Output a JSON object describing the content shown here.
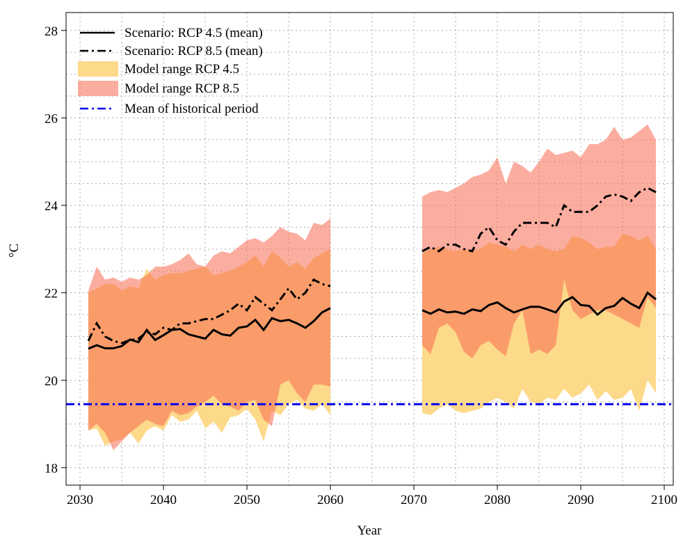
{
  "chart_data": {
    "type": "line",
    "xlabel": "Year",
    "ylabel": "°C",
    "xlim": [
      2028.33,
      2101.08
    ],
    "ylim": [
      17.6,
      28.41
    ],
    "xticks": [
      2030,
      2040,
      2050,
      2060,
      2070,
      2080,
      2090,
      2100
    ],
    "yticks": [
      18,
      20,
      22,
      24,
      26,
      28
    ],
    "xgrid": [
      2030,
      2035,
      2040,
      2045,
      2050,
      2055,
      2060,
      2065,
      2070,
      2075,
      2080,
      2085,
      2090,
      2095,
      2100
    ],
    "ygrid": [
      18,
      18.5,
      19,
      19.5,
      20,
      20.5,
      21,
      21.5,
      22,
      22.5,
      23,
      23.5,
      24,
      24.5,
      25,
      25.5,
      26,
      26.5,
      27,
      27.5,
      28
    ],
    "grid": true,
    "legend": "upper left",
    "x": [
      2031,
      2032,
      2033,
      2034,
      2035,
      2036,
      2037,
      2038,
      2039,
      2040,
      2041,
      2042,
      2043,
      2044,
      2045,
      2046,
      2047,
      2048,
      2049,
      2050,
      2051,
      2052,
      2053,
      2054,
      2055,
      2056,
      2057,
      2058,
      2059,
      2060,
      2061,
      2062,
      2063,
      2064,
      2065,
      2066,
      2067,
      2068,
      2069,
      2070,
      2071,
      2072,
      2073,
      2074,
      2075,
      2076,
      2077,
      2078,
      2079,
      2080,
      2081,
      2082,
      2083,
      2084,
      2085,
      2086,
      2087,
      2088,
      2089,
      2090,
      2091,
      2092,
      2093,
      2094,
      2095,
      2096,
      2097,
      2098,
      2099
    ],
    "series": [
      {
        "name": "Scenario: RCP 4.5 (mean)",
        "color": "#000000",
        "dash": "solid",
        "values": [
          20.72,
          20.8,
          20.73,
          20.73,
          20.78,
          20.93,
          20.87,
          21.15,
          20.92,
          21.03,
          21.15,
          21.17,
          21.05,
          21.0,
          20.95,
          21.15,
          21.05,
          21.02,
          21.2,
          21.23,
          21.38,
          21.15,
          21.42,
          21.35,
          21.38,
          21.3,
          21.2,
          21.35,
          21.55,
          21.65,
          null,
          null,
          null,
          null,
          null,
          null,
          null,
          null,
          null,
          null,
          21.6,
          21.52,
          21.62,
          21.55,
          21.57,
          21.52,
          21.62,
          21.58,
          21.72,
          21.78,
          21.65,
          21.55,
          21.62,
          21.68,
          21.68,
          21.62,
          21.55,
          21.8,
          21.9,
          21.72,
          21.7,
          21.5,
          21.65,
          21.7,
          21.88,
          21.75,
          21.65,
          22.0,
          21.85
        ]
      },
      {
        "name": "Scenario: RCP 8.5 (mean)",
        "color": "#000000",
        "dash": "dashdot",
        "values": [
          20.9,
          21.3,
          21.0,
          20.9,
          20.85,
          20.92,
          20.95,
          21.1,
          21.05,
          21.2,
          21.15,
          21.3,
          21.3,
          21.35,
          21.4,
          21.4,
          21.5,
          21.6,
          21.75,
          21.6,
          21.9,
          21.75,
          21.6,
          21.85,
          22.1,
          21.85,
          22.0,
          22.3,
          22.2,
          22.15,
          null,
          null,
          null,
          null,
          null,
          null,
          null,
          null,
          null,
          null,
          22.95,
          23.05,
          22.95,
          23.1,
          23.1,
          23.0,
          22.95,
          23.35,
          23.5,
          23.2,
          23.1,
          23.4,
          23.6,
          23.6,
          23.6,
          23.6,
          23.5,
          24.0,
          23.85,
          23.85,
          23.85,
          24.0,
          24.2,
          24.25,
          24.2,
          24.1,
          24.3,
          24.4,
          24.3
        ]
      }
    ],
    "bands": [
      {
        "name": "Model range RCP 4.5",
        "color": "#fdd98a",
        "opacity": 1,
        "lower": [
          18.85,
          18.9,
          18.5,
          18.6,
          18.65,
          18.8,
          18.55,
          18.85,
          18.95,
          18.85,
          19.2,
          19.05,
          19.1,
          19.3,
          18.9,
          19.05,
          18.8,
          19.15,
          19.2,
          19.35,
          19.1,
          18.6,
          19.3,
          19.2,
          19.45,
          19.55,
          19.35,
          19.3,
          19.45,
          19.2,
          null,
          null,
          null,
          null,
          null,
          null,
          null,
          null,
          null,
          null,
          19.25,
          19.2,
          19.35,
          19.45,
          19.3,
          19.25,
          19.3,
          19.35,
          19.5,
          19.6,
          19.5,
          19.35,
          19.8,
          19.5,
          19.45,
          19.6,
          19.55,
          19.8,
          19.6,
          19.7,
          19.9,
          19.55,
          19.75,
          19.55,
          19.6,
          19.8,
          19.3,
          20.0,
          19.7
        ],
        "upper": [
          22.0,
          22.1,
          22.2,
          22.2,
          22.05,
          22.15,
          22.1,
          22.55,
          22.3,
          22.4,
          22.45,
          22.45,
          22.5,
          22.55,
          22.6,
          22.4,
          22.45,
          22.5,
          22.6,
          22.7,
          22.85,
          22.6,
          22.95,
          22.8,
          22.6,
          22.7,
          22.55,
          22.8,
          22.9,
          23.0,
          null,
          null,
          null,
          null,
          null,
          null,
          null,
          null,
          null,
          null,
          22.9,
          23.0,
          23.05,
          23.0,
          22.95,
          23.0,
          22.95,
          23.0,
          23.15,
          23.1,
          23.05,
          22.95,
          23.1,
          23.0,
          23.1,
          23.0,
          22.95,
          23.0,
          23.3,
          23.25,
          23.15,
          23.0,
          23.05,
          23.05,
          23.35,
          23.3,
          23.2,
          23.3,
          23.0
        ]
      },
      {
        "name": "Model range RCP 8.5",
        "color": "#f86a50",
        "opacity": 0.55,
        "lower": [
          18.85,
          19.0,
          18.8,
          18.4,
          18.6,
          18.8,
          18.95,
          19.1,
          19.0,
          18.95,
          19.3,
          19.2,
          19.25,
          19.4,
          19.5,
          19.65,
          19.45,
          19.4,
          19.3,
          19.5,
          19.55,
          19.1,
          18.95,
          19.9,
          20.0,
          19.7,
          19.5,
          19.9,
          19.9,
          19.85,
          null,
          null,
          null,
          null,
          null,
          null,
          null,
          null,
          null,
          null,
          20.8,
          20.6,
          21.2,
          21.3,
          21.1,
          20.65,
          20.5,
          20.8,
          20.9,
          20.7,
          20.55,
          21.3,
          21.6,
          20.6,
          20.7,
          20.6,
          20.8,
          22.3,
          21.6,
          21.4,
          21.5,
          21.6,
          21.6,
          21.5,
          21.4,
          21.3,
          21.2,
          21.9,
          21.65
        ],
        "upper": [
          22.05,
          22.6,
          22.3,
          22.35,
          22.25,
          22.35,
          22.3,
          22.4,
          22.6,
          22.6,
          22.65,
          22.75,
          22.9,
          22.65,
          22.6,
          22.85,
          22.95,
          22.9,
          23.05,
          23.2,
          23.25,
          23.15,
          23.3,
          23.5,
          23.4,
          23.35,
          23.2,
          23.6,
          23.55,
          23.7,
          null,
          null,
          null,
          null,
          null,
          null,
          null,
          null,
          null,
          null,
          24.2,
          24.3,
          24.35,
          24.3,
          24.4,
          24.5,
          24.65,
          24.7,
          24.8,
          25.1,
          24.5,
          25.0,
          24.9,
          24.75,
          25.0,
          25.3,
          25.15,
          25.2,
          25.25,
          25.1,
          25.4,
          25.4,
          25.5,
          25.8,
          25.5,
          25.55,
          25.7,
          25.85,
          25.5
        ]
      }
    ],
    "hlines": [
      {
        "name": "Mean of historical period",
        "value": 19.45,
        "color": "#0000ee",
        "dash": "dashdot"
      }
    ]
  }
}
